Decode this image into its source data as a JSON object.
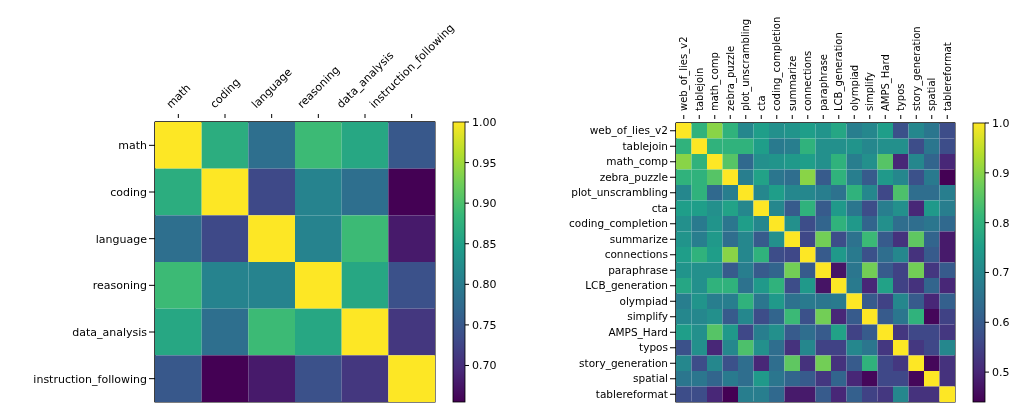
{
  "chart_data": [
    {
      "type": "heatmap",
      "categories": [
        "math",
        "coding",
        "language",
        "reasoning",
        "data_analysis",
        "instruction_following"
      ],
      "y_categories": [
        "math",
        "coding",
        "language",
        "reasoning",
        "data_analysis",
        "instruction_following"
      ],
      "cells": [
        [
          1,
          0.87,
          0.78,
          0.89,
          0.86,
          0.75
        ],
        [
          0.87,
          1,
          0.73,
          0.81,
          0.78,
          0.655
        ],
        [
          0.78,
          0.73,
          1,
          0.81,
          0.89,
          0.68
        ],
        [
          0.89,
          0.81,
          0.81,
          1,
          0.86,
          0.74
        ],
        [
          0.86,
          0.78,
          0.89,
          0.86,
          1,
          0.71
        ],
        [
          0.75,
          0.655,
          0.68,
          0.74,
          0.71,
          1
        ]
      ],
      "clim": [
        0.655,
        1
      ],
      "cticks": [
        {
          "value": 0.7,
          "label": "0.70"
        },
        {
          "value": 0.75,
          "label": "0.75"
        },
        {
          "value": 0.8,
          "label": "0.80"
        },
        {
          "value": 0.85,
          "label": "0.85"
        },
        {
          "value": 0.9,
          "label": "0.90"
        },
        {
          "value": 0.95,
          "label": "0.95"
        },
        {
          "value": 1,
          "label": "1.00"
        }
      ]
    },
    {
      "type": "heatmap",
      "categories": [
        "web_of_lies_v2",
        "tablejoin",
        "math_comp",
        "zebra_puzzle",
        "plot_unscrambling",
        "cta",
        "coding_completion",
        "summarize",
        "connections",
        "paraphrase",
        "LCB_generation",
        "olympiad",
        "simplify",
        "AMPS_Hard",
        "typos",
        "story_generation",
        "spatial",
        "tablereformat"
      ],
      "y_categories": [
        "web_of_lies_v2",
        "tablejoin",
        "math_comp",
        "zebra_puzzle",
        "plot_unscrambling",
        "cta",
        "coding_completion",
        "summarize",
        "connections",
        "paraphrase",
        "LCB_generation",
        "olympiad",
        "simplify",
        "AMPS_Hard",
        "typos",
        "story_generation",
        "spatial",
        "tablereformat"
      ],
      "cells": [
        [
          1,
          0.8,
          0.9,
          0.8,
          0.7,
          0.75,
          0.72,
          0.73,
          0.75,
          0.73,
          0.77,
          0.68,
          0.7,
          0.75,
          0.58,
          0.7,
          0.66,
          0.57
        ],
        [
          0.8,
          1,
          0.8,
          0.8,
          0.8,
          0.75,
          0.67,
          0.68,
          0.8,
          0.72,
          0.72,
          0.73,
          0.7,
          0.72,
          0.72,
          0.57,
          0.66,
          0.57
        ],
        [
          0.9,
          0.8,
          1,
          0.85,
          0.63,
          0.72,
          0.73,
          0.74,
          0.75,
          0.72,
          0.8,
          0.68,
          0.72,
          0.85,
          0.5,
          0.7,
          0.62,
          0.5
        ],
        [
          0.8,
          0.8,
          0.85,
          1,
          0.68,
          0.76,
          0.66,
          0.64,
          0.9,
          0.6,
          0.8,
          0.68,
          0.6,
          0.74,
          0.7,
          0.58,
          0.67,
          0.44
        ],
        [
          0.7,
          0.8,
          0.63,
          0.68,
          1,
          0.7,
          0.75,
          0.7,
          0.7,
          0.68,
          0.65,
          0.8,
          0.7,
          0.56,
          0.84,
          0.64,
          0.64,
          0.68
        ],
        [
          0.75,
          0.75,
          0.72,
          0.76,
          0.7,
          1,
          0.7,
          0.6,
          0.8,
          0.6,
          0.74,
          0.66,
          0.57,
          0.68,
          0.72,
          0.5,
          0.74,
          0.68
        ],
        [
          0.72,
          0.67,
          0.73,
          0.66,
          0.75,
          0.7,
          1,
          0.72,
          0.57,
          0.62,
          0.8,
          0.74,
          0.62,
          0.72,
          0.64,
          0.64,
          0.66,
          0.63
        ],
        [
          0.73,
          0.68,
          0.74,
          0.64,
          0.7,
          0.6,
          0.72,
          1,
          0.56,
          0.88,
          0.57,
          0.65,
          0.82,
          0.6,
          0.52,
          0.86,
          0.62,
          0.48
        ],
        [
          0.75,
          0.8,
          0.75,
          0.9,
          0.7,
          0.8,
          0.57,
          0.56,
          1,
          0.6,
          0.74,
          0.67,
          0.58,
          0.64,
          0.7,
          0.52,
          0.6,
          0.48
        ],
        [
          0.73,
          0.72,
          0.72,
          0.6,
          0.68,
          0.6,
          0.62,
          0.88,
          0.6,
          1,
          0.47,
          0.66,
          0.88,
          0.6,
          0.55,
          0.88,
          0.53,
          0.6
        ],
        [
          0.77,
          0.72,
          0.8,
          0.8,
          0.65,
          0.74,
          0.8,
          0.57,
          0.74,
          0.47,
          1,
          0.67,
          0.5,
          0.76,
          0.55,
          0.52,
          0.62,
          0.5
        ],
        [
          0.68,
          0.73,
          0.68,
          0.68,
          0.8,
          0.66,
          0.74,
          0.65,
          0.67,
          0.66,
          0.67,
          1,
          0.6,
          0.55,
          0.7,
          0.6,
          0.5,
          0.61
        ],
        [
          0.7,
          0.7,
          0.72,
          0.6,
          0.7,
          0.57,
          0.62,
          0.82,
          0.58,
          0.88,
          0.5,
          0.6,
          1,
          0.6,
          0.66,
          0.8,
          0.45,
          0.55
        ],
        [
          0.75,
          0.72,
          0.85,
          0.74,
          0.56,
          0.68,
          0.72,
          0.6,
          0.64,
          0.6,
          0.76,
          0.55,
          0.6,
          1,
          0.53,
          0.56,
          0.56,
          0.53
        ],
        [
          0.58,
          0.72,
          0.5,
          0.7,
          0.84,
          0.72,
          0.64,
          0.52,
          0.7,
          0.55,
          0.55,
          0.7,
          0.66,
          0.53,
          1,
          0.53,
          0.56,
          0.7
        ],
        [
          0.7,
          0.57,
          0.7,
          0.58,
          0.64,
          0.5,
          0.64,
          0.86,
          0.52,
          0.88,
          0.52,
          0.6,
          0.8,
          0.56,
          0.53,
          1,
          0.45,
          0.52
        ],
        [
          0.66,
          0.66,
          0.62,
          0.67,
          0.64,
          0.74,
          0.66,
          0.62,
          0.6,
          0.53,
          0.62,
          0.5,
          0.45,
          0.56,
          0.56,
          0.45,
          1,
          0.52
        ],
        [
          0.57,
          0.57,
          0.5,
          0.44,
          0.68,
          0.68,
          0.63,
          0.48,
          0.48,
          0.6,
          0.5,
          0.61,
          0.55,
          0.53,
          0.7,
          0.52,
          0.52,
          1
        ]
      ],
      "clim": [
        0.44,
        1
      ],
      "cticks": [
        {
          "value": 0.5,
          "label": "0.5"
        },
        {
          "value": 0.6,
          "label": "0.6"
        },
        {
          "value": 0.7,
          "label": "0.7"
        },
        {
          "value": 0.8,
          "label": "0.8"
        },
        {
          "value": 0.9,
          "label": "0.9"
        },
        {
          "value": 1,
          "label": "1.0"
        }
      ]
    }
  ]
}
